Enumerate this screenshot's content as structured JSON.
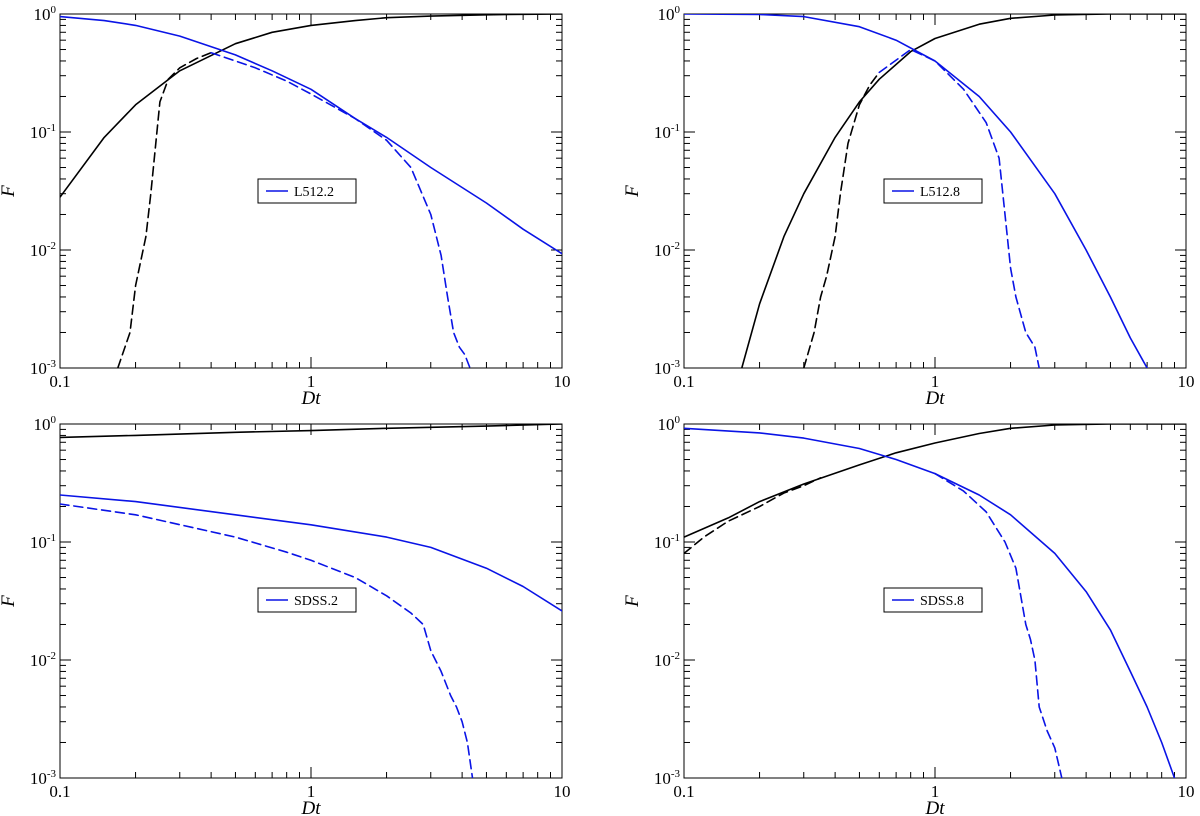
{
  "colors": {
    "black": "#000000",
    "blue": "#0a14e6"
  },
  "chart_data": [
    {
      "type": "line",
      "xlabel": "Dt",
      "ylabel": "F",
      "xscale": "log",
      "yscale": "log",
      "xlim": [
        0.1,
        10
      ],
      "ylim": [
        0.001,
        1
      ],
      "xticks": [
        "0.1",
        "1",
        "10"
      ],
      "yticks": [
        {
          "base": "10",
          "exp": "-3"
        },
        {
          "base": "10",
          "exp": "-2"
        },
        {
          "base": "10",
          "exp": "-1"
        },
        {
          "base": "10",
          "exp": "0"
        }
      ],
      "grid": false,
      "legend": {
        "label": "L512.2",
        "placement": "center"
      },
      "series": [
        {
          "color": "black",
          "dash": false,
          "x": [
            0.1,
            0.15,
            0.2,
            0.3,
            0.5,
            0.7,
            1,
            1.5,
            2,
            3,
            5,
            7,
            10
          ],
          "y": [
            0.028,
            0.09,
            0.17,
            0.33,
            0.56,
            0.7,
            0.8,
            0.88,
            0.93,
            0.96,
            0.985,
            0.995,
            1.0
          ]
        },
        {
          "color": "black",
          "dash": true,
          "x": [
            0.17,
            0.19,
            0.2,
            0.22,
            0.23,
            0.25,
            0.27,
            0.3,
            0.35,
            0.4
          ],
          "y": [
            0.001,
            0.002,
            0.005,
            0.013,
            0.03,
            0.18,
            0.28,
            0.35,
            0.42,
            0.47
          ]
        },
        {
          "color": "blue",
          "dash": false,
          "x": [
            0.1,
            0.15,
            0.2,
            0.3,
            0.5,
            0.7,
            1,
            1.5,
            2,
            3,
            5,
            7,
            10
          ],
          "y": [
            0.95,
            0.88,
            0.8,
            0.65,
            0.45,
            0.33,
            0.23,
            0.13,
            0.09,
            0.05,
            0.025,
            0.015,
            0.0093
          ]
        },
        {
          "color": "blue",
          "dash": true,
          "x": [
            0.4,
            0.6,
            0.8,
            1,
            1.5,
            2,
            2.5,
            3,
            3.3,
            3.5,
            3.7,
            3.9,
            4.1,
            4.3
          ],
          "y": [
            0.47,
            0.35,
            0.27,
            0.21,
            0.13,
            0.085,
            0.05,
            0.02,
            0.009,
            0.004,
            0.002,
            0.0015,
            0.0013,
            0.001
          ]
        }
      ]
    },
    {
      "type": "line",
      "xlabel": "Dt",
      "ylabel": "F",
      "xscale": "log",
      "yscale": "log",
      "xlim": [
        0.1,
        10
      ],
      "ylim": [
        0.001,
        1
      ],
      "xticks": [
        "0.1",
        "1",
        "10"
      ],
      "yticks": [
        {
          "base": "10",
          "exp": "-3"
        },
        {
          "base": "10",
          "exp": "-2"
        },
        {
          "base": "10",
          "exp": "-1"
        },
        {
          "base": "10",
          "exp": "0"
        }
      ],
      "grid": false,
      "legend": {
        "label": "L512.8",
        "placement": "center"
      },
      "series": [
        {
          "color": "black",
          "dash": false,
          "x": [
            0.17,
            0.2,
            0.25,
            0.3,
            0.4,
            0.5,
            0.6,
            0.8,
            1,
            1.5,
            2,
            3,
            5,
            10
          ],
          "y": [
            0.001,
            0.0035,
            0.013,
            0.03,
            0.09,
            0.18,
            0.28,
            0.48,
            0.62,
            0.82,
            0.92,
            0.98,
            1.0,
            1.0
          ]
        },
        {
          "color": "black",
          "dash": true,
          "x": [
            0.3,
            0.33,
            0.35,
            0.37,
            0.4,
            0.42,
            0.45,
            0.5,
            0.55,
            0.6
          ],
          "y": [
            0.001,
            0.002,
            0.004,
            0.006,
            0.013,
            0.03,
            0.08,
            0.17,
            0.25,
            0.32
          ]
        },
        {
          "color": "blue",
          "dash": false,
          "x": [
            0.1,
            0.2,
            0.3,
            0.5,
            0.7,
            1,
            1.5,
            2,
            3,
            4,
            5,
            6,
            7
          ],
          "y": [
            1.0,
            0.99,
            0.95,
            0.78,
            0.6,
            0.4,
            0.2,
            0.1,
            0.03,
            0.01,
            0.004,
            0.0018,
            0.001
          ]
        },
        {
          "color": "blue",
          "dash": true,
          "x": [
            0.6,
            0.8,
            1,
            1.3,
            1.6,
            1.8,
            1.9,
            2,
            2.1,
            2.3,
            2.5,
            2.6
          ],
          "y": [
            0.32,
            0.5,
            0.4,
            0.23,
            0.12,
            0.06,
            0.02,
            0.007,
            0.004,
            0.002,
            0.0015,
            0.001
          ]
        }
      ]
    },
    {
      "type": "line",
      "xlabel": "Dt",
      "ylabel": "F",
      "xscale": "log",
      "yscale": "log",
      "xlim": [
        0.1,
        10
      ],
      "ylim": [
        0.001,
        1
      ],
      "xticks": [
        "0.1",
        "1",
        "10"
      ],
      "yticks": [
        {
          "base": "10",
          "exp": "-3"
        },
        {
          "base": "10",
          "exp": "-2"
        },
        {
          "base": "10",
          "exp": "-1"
        },
        {
          "base": "10",
          "exp": "0"
        }
      ],
      "grid": false,
      "legend": {
        "label": "SDSS.2",
        "placement": "center"
      },
      "series": [
        {
          "color": "black",
          "dash": false,
          "x": [
            0.1,
            0.2,
            0.5,
            1,
            2,
            5,
            10
          ],
          "y": [
            0.77,
            0.8,
            0.85,
            0.88,
            0.92,
            0.96,
            1.0
          ]
        },
        {
          "color": "blue",
          "dash": false,
          "x": [
            0.1,
            0.2,
            0.5,
            1,
            2,
            3,
            5,
            7,
            10
          ],
          "y": [
            0.25,
            0.22,
            0.17,
            0.14,
            0.11,
            0.09,
            0.06,
            0.042,
            0.026
          ]
        },
        {
          "color": "blue",
          "dash": true,
          "x": [
            0.1,
            0.2,
            0.5,
            0.8,
            1,
            1.5,
            2,
            2.5,
            2.8,
            3,
            3.3,
            3.6,
            3.8,
            4,
            4.2,
            4.4
          ],
          "y": [
            0.21,
            0.17,
            0.11,
            0.082,
            0.07,
            0.05,
            0.035,
            0.025,
            0.02,
            0.012,
            0.008,
            0.005,
            0.004,
            0.003,
            0.002,
            0.001
          ]
        }
      ]
    },
    {
      "type": "line",
      "xlabel": "Dt",
      "ylabel": "F",
      "xscale": "log",
      "yscale": "log",
      "xlim": [
        0.1,
        10
      ],
      "ylim": [
        0.001,
        1
      ],
      "xticks": [
        "0.1",
        "1",
        "10"
      ],
      "yticks": [
        {
          "base": "10",
          "exp": "-3"
        },
        {
          "base": "10",
          "exp": "-2"
        },
        {
          "base": "10",
          "exp": "-1"
        },
        {
          "base": "10",
          "exp": "0"
        }
      ],
      "grid": false,
      "legend": {
        "label": "SDSS.8",
        "placement": "center"
      },
      "series": [
        {
          "color": "black",
          "dash": false,
          "x": [
            0.1,
            0.15,
            0.2,
            0.3,
            0.5,
            0.7,
            1,
            1.5,
            2,
            3,
            5,
            10
          ],
          "y": [
            0.11,
            0.16,
            0.22,
            0.31,
            0.45,
            0.57,
            0.69,
            0.83,
            0.92,
            0.98,
            1.0,
            1.0
          ]
        },
        {
          "color": "black",
          "dash": true,
          "x": [
            0.1,
            0.12,
            0.15,
            0.2,
            0.25,
            0.3,
            0.35
          ],
          "y": [
            0.08,
            0.11,
            0.15,
            0.2,
            0.26,
            0.3,
            0.35
          ]
        },
        {
          "color": "blue",
          "dash": false,
          "x": [
            0.1,
            0.2,
            0.3,
            0.5,
            0.7,
            1,
            1.5,
            2,
            3,
            4,
            5,
            6,
            7,
            8,
            9
          ],
          "y": [
            0.92,
            0.84,
            0.76,
            0.62,
            0.5,
            0.38,
            0.25,
            0.17,
            0.08,
            0.038,
            0.018,
            0.008,
            0.004,
            0.002,
            0.001
          ]
        },
        {
          "color": "blue",
          "dash": true,
          "x": [
            1,
            1.3,
            1.6,
            1.9,
            2.1,
            2.3,
            2.4,
            2.5,
            2.6,
            2.8,
            3.0,
            3.2
          ],
          "y": [
            0.38,
            0.27,
            0.18,
            0.1,
            0.06,
            0.02,
            0.015,
            0.01,
            0.004,
            0.0025,
            0.0018,
            0.001
          ]
        }
      ]
    }
  ]
}
